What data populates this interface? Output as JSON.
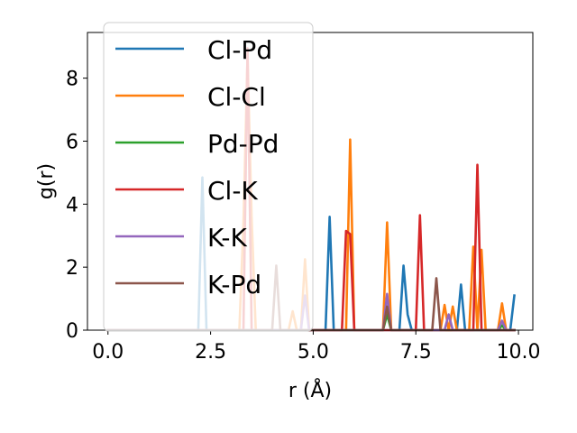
{
  "chart_data": {
    "type": "line",
    "xlabel": "r (Å)",
    "ylabel": "g(r)",
    "xlim": [
      -0.5,
      10.35
    ],
    "ylim": [
      0,
      9.45
    ],
    "xticks": [
      "0.0",
      "2.5",
      "5.0",
      "7.5",
      "10.0"
    ],
    "yticks": [
      "0",
      "2",
      "4",
      "6",
      "8"
    ],
    "grid": false,
    "legend_placement": "upper-left",
    "series": [
      {
        "name": "Cl-Pd",
        "color": "#1f77b4",
        "x": [
          0,
          2.2,
          2.3,
          2.4,
          5.3,
          5.4,
          5.5,
          7.1,
          7.2,
          7.3,
          7.4,
          8.5,
          8.6,
          8.7,
          9.7,
          9.8,
          9.9
        ],
        "y": [
          0,
          0,
          4.85,
          0,
          0,
          3.6,
          0,
          0,
          2.05,
          0.5,
          0,
          0,
          1.45,
          0,
          0,
          0,
          1.1
        ]
      },
      {
        "name": "Cl-Cl",
        "color": "#ff7f0e",
        "x": [
          0,
          3.2,
          3.3,
          3.4,
          3.5,
          3.6,
          4.4,
          4.5,
          4.6,
          4.7,
          4.8,
          4.9,
          5.8,
          5.9,
          6.0,
          6.7,
          6.8,
          6.9,
          8.1,
          8.2,
          8.3,
          8.4,
          8.5,
          8.8,
          8.9,
          9.0,
          9.1,
          9.2,
          9.5,
          9.6,
          9.7,
          9.8,
          9.9
        ],
        "y": [
          0,
          0,
          3.4,
          8.75,
          3.6,
          0,
          0,
          0.6,
          0,
          0,
          2.25,
          0,
          0,
          6.05,
          0,
          0,
          3.42,
          0,
          0,
          0.8,
          0,
          0.75,
          0,
          0,
          2.65,
          0,
          2.55,
          0,
          0,
          0.85,
          0,
          0,
          0
        ]
      },
      {
        "name": "Pd-Pd",
        "color": "#2ca02c",
        "x": [
          0,
          6.7,
          6.8,
          6.9,
          9.5,
          9.6,
          9.7,
          9.9
        ],
        "y": [
          0,
          0,
          0.5,
          0,
          0,
          0.15,
          0,
          0
        ]
      },
      {
        "name": "Cl-K",
        "color": "#d62728",
        "x": [
          0,
          3.3,
          3.4,
          3.5,
          5.7,
          5.8,
          5.9,
          6.0,
          7.5,
          7.6,
          7.7,
          8.9,
          9.0,
          9.1,
          9.9
        ],
        "y": [
          0,
          0,
          8.95,
          0,
          0,
          3.15,
          3.05,
          0,
          0,
          3.65,
          0,
          0,
          5.25,
          0,
          0
        ]
      },
      {
        "name": "K-K",
        "color": "#9467bd",
        "x": [
          0,
          4.7,
          4.8,
          4.9,
          6.7,
          6.8,
          6.9,
          8.2,
          8.3,
          8.4,
          9.5,
          9.6,
          9.7,
          9.9
        ],
        "y": [
          0,
          0,
          1.1,
          0,
          0,
          1.15,
          0,
          0,
          0.5,
          0,
          0,
          0.3,
          0,
          0
        ]
      },
      {
        "name": "K-Pd",
        "color": "#8c564b",
        "x": [
          0,
          4.0,
          4.1,
          4.2,
          6.7,
          6.8,
          6.9,
          7.9,
          8.0,
          8.1,
          9.9
        ],
        "y": [
          0,
          0,
          2.05,
          0,
          0,
          0.75,
          0,
          0,
          1.65,
          0,
          0
        ]
      }
    ]
  }
}
